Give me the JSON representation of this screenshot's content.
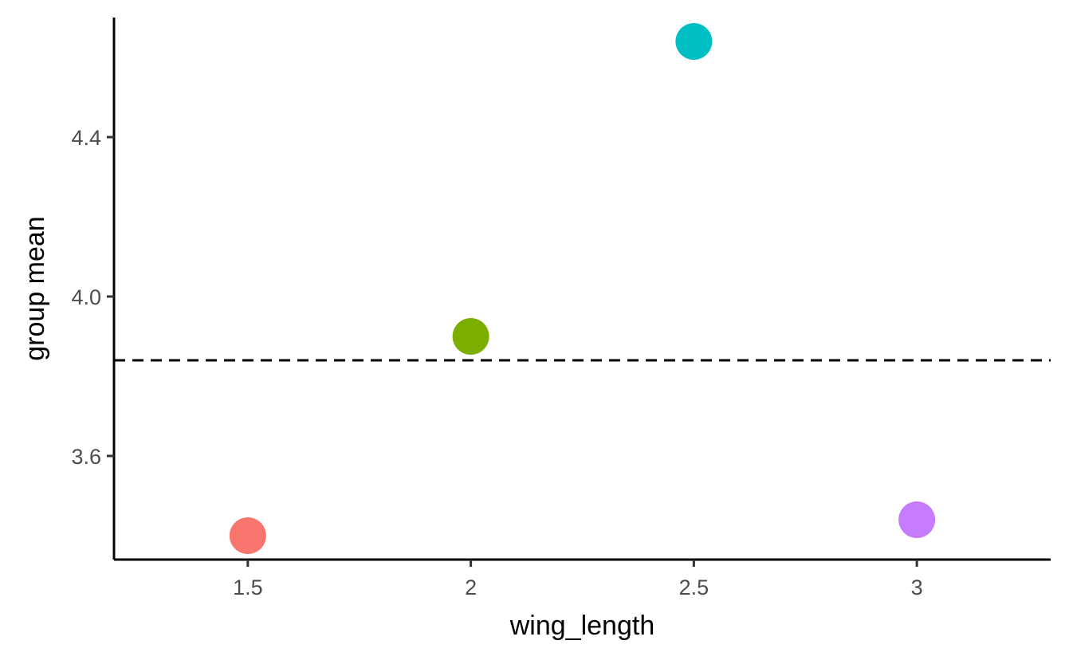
{
  "chart_data": {
    "type": "scatter",
    "title": "",
    "xlabel": "wing_length",
    "ylabel": "group mean",
    "x_ticks": [
      "1.5",
      "2",
      "2.5",
      "3"
    ],
    "y_ticks": [
      "3.6",
      "4.0",
      "4.4"
    ],
    "xlim": [
      1.2,
      3.3
    ],
    "ylim": [
      3.34,
      4.7
    ],
    "grid": false,
    "legend": "none",
    "reference_line": {
      "y": 3.84,
      "style": "dashed",
      "color": "#000000"
    },
    "points": [
      {
        "x": 1.5,
        "y": 3.4,
        "color": "#F8766D"
      },
      {
        "x": 2.0,
        "y": 3.9,
        "color": "#7CAE00"
      },
      {
        "x": 2.5,
        "y": 4.64,
        "color": "#00BFC4"
      },
      {
        "x": 3.0,
        "y": 3.44,
        "color": "#C77CFF"
      }
    ]
  }
}
